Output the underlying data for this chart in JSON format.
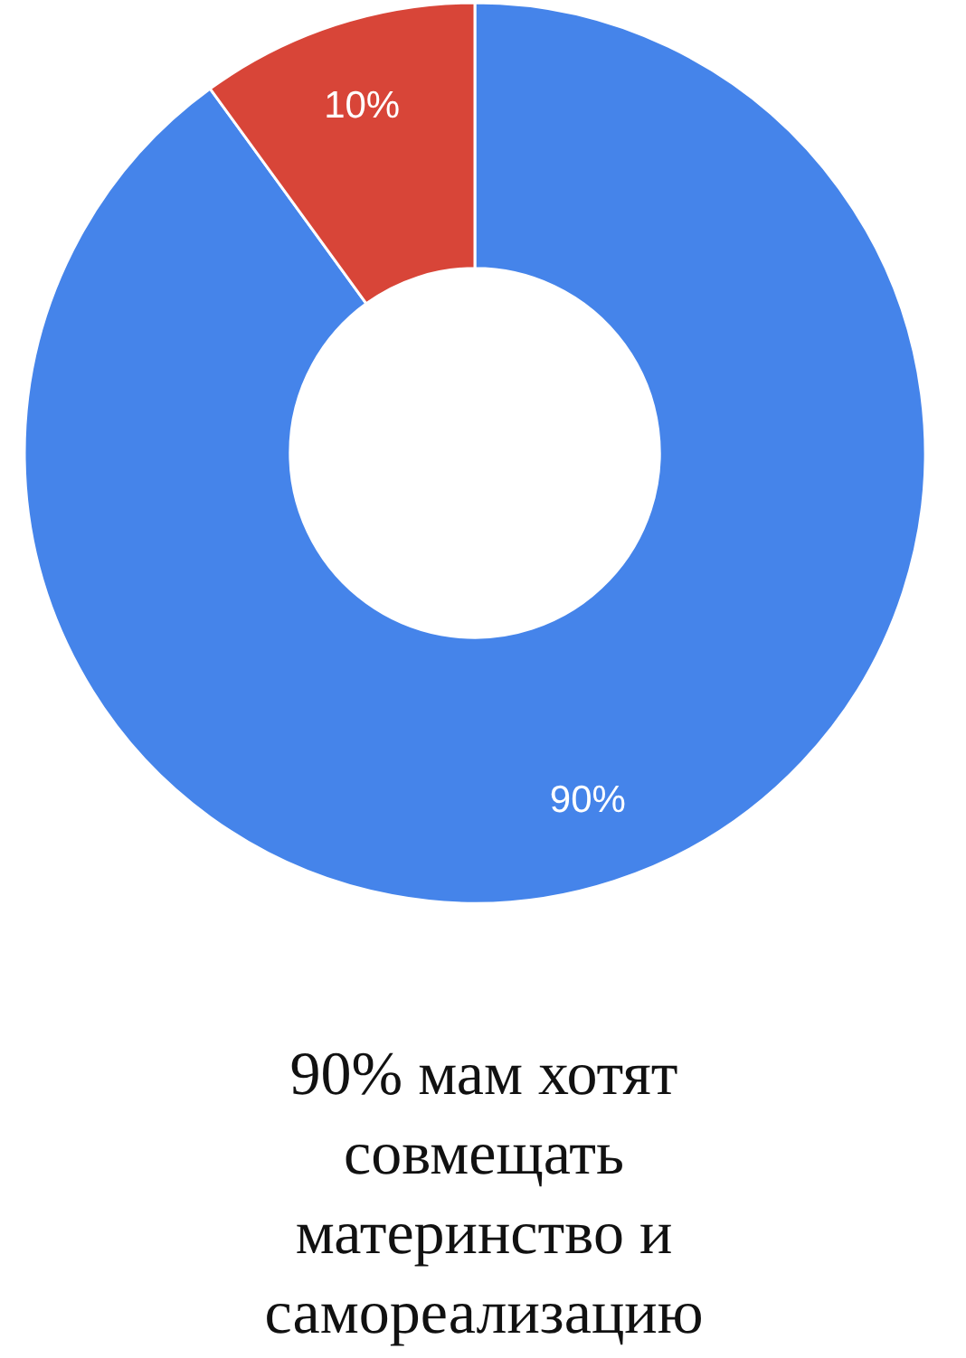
{
  "chart_data": {
    "type": "donut",
    "title": "90% мам хотят совмещать материнство и самореализацию",
    "categories": [
      null,
      null
    ],
    "values": [
      90,
      10
    ],
    "colors": [
      "#4584ea",
      "#d84538"
    ],
    "value_labels": [
      "90%",
      "10%"
    ]
  }
}
